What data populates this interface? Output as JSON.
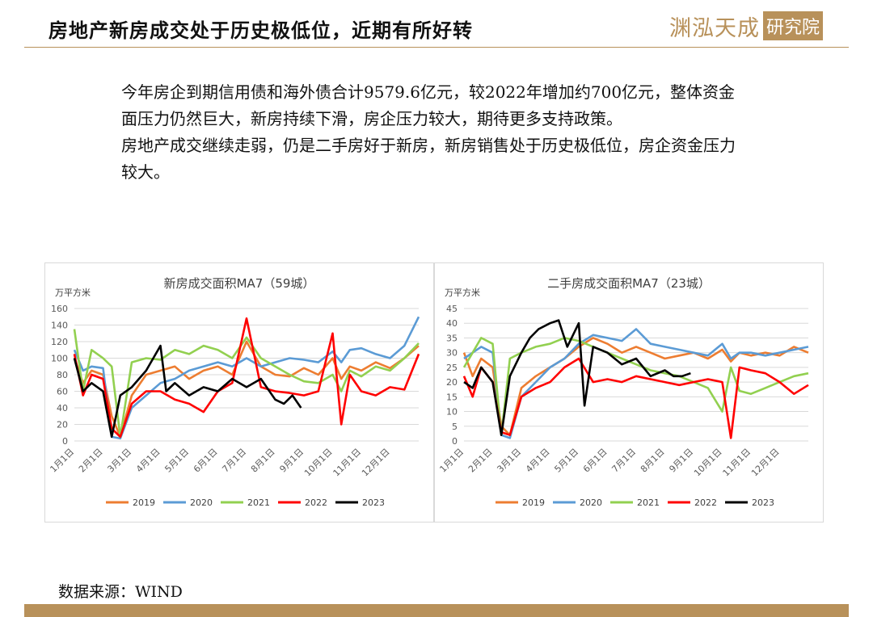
{
  "header": {
    "title": "房地产新房成交处于历史极低位，近期有所好转"
  },
  "logo": {
    "text": "渊泓天成",
    "boxed_text": "研究院",
    "color": "#b8915a"
  },
  "body": {
    "paragraphs": [
      "今年房企到期信用债和海外债合计9579.6亿元，较2022年增加约700亿元，整体资金面压力仍然巨大，新房持续下滑，房企压力较大，期待更多支持政策。",
      "房地产成交继续走弱，仍是二手房好于新房，新房销售处于历史极低位，房企资金压力较大。"
    ]
  },
  "source": {
    "text": "数据来源：WIND"
  },
  "series_colors": {
    "2019": "#ED7D31",
    "2020": "#5B9BD5",
    "2021": "#92D050",
    "2022": "#FF0000",
    "2023": "#000000"
  },
  "chart_data": [
    {
      "type": "line",
      "title": "新房成交面积MA7（59城）",
      "ylabel": "万平方米",
      "ylim": [
        0,
        160
      ],
      "yticks": [
        0,
        20,
        40,
        60,
        80,
        100,
        120,
        140,
        160
      ],
      "x_ticks": [
        "1月1日",
        "2月1日",
        "3月1日",
        "4月1日",
        "5月1日",
        "6月1日",
        "7月1日",
        "8月1日",
        "9月1日",
        "10月1日",
        "11月1日",
        "12月1日"
      ],
      "grid": true,
      "legend": "bottom",
      "series": [
        {
          "name": "2019",
          "x": [
            1,
            1.3,
            1.6,
            2,
            2.3,
            2.6,
            3,
            3.5,
            4,
            4.5,
            5,
            5.5,
            6,
            6.5,
            7,
            7.5,
            8,
            8.5,
            9,
            9.5,
            10,
            10.3,
            10.6,
            11,
            11.5,
            12,
            12.5,
            13
          ],
          "values": [
            100,
            70,
            85,
            80,
            30,
            5,
            55,
            80,
            85,
            90,
            75,
            85,
            90,
            80,
            120,
            90,
            80,
            78,
            88,
            80,
            100,
            75,
            90,
            85,
            95,
            88,
            100,
            115
          ]
        },
        {
          "name": "2020",
          "x": [
            1,
            1.3,
            1.6,
            2,
            2.3,
            2.6,
            3,
            3.5,
            4,
            4.5,
            5,
            5.5,
            6,
            6.5,
            7,
            7.5,
            8,
            8.5,
            9,
            9.5,
            10,
            10.3,
            10.6,
            11,
            11.5,
            12,
            12.5,
            13
          ],
          "values": [
            110,
            85,
            90,
            88,
            5,
            3,
            40,
            55,
            70,
            75,
            85,
            90,
            95,
            90,
            100,
            90,
            95,
            100,
            98,
            95,
            108,
            95,
            110,
            112,
            105,
            100,
            115,
            150
          ]
        },
        {
          "name": "2021",
          "x": [
            1,
            1.3,
            1.6,
            2,
            2.3,
            2.6,
            3,
            3.5,
            4,
            4.5,
            5,
            5.5,
            6,
            6.5,
            7,
            7.5,
            8,
            8.5,
            9,
            9.5,
            10,
            10.3,
            10.6,
            11,
            11.5,
            12,
            12.5,
            13
          ],
          "values": [
            135,
            60,
            110,
            100,
            90,
            5,
            95,
            100,
            98,
            110,
            105,
            115,
            110,
            100,
            125,
            100,
            90,
            80,
            72,
            70,
            80,
            60,
            85,
            78,
            90,
            85,
            100,
            118
          ]
        },
        {
          "name": "2022",
          "x": [
            1,
            1.3,
            1.6,
            2,
            2.3,
            2.6,
            3,
            3.5,
            4,
            4.5,
            5,
            5.5,
            6,
            6.5,
            7,
            7.5,
            8,
            8.5,
            9,
            9.5,
            10,
            10.3,
            10.6,
            11,
            11.5,
            12,
            12.5,
            13
          ],
          "values": [
            105,
            55,
            80,
            75,
            15,
            5,
            45,
            60,
            60,
            50,
            45,
            35,
            60,
            70,
            148,
            65,
            60,
            58,
            55,
            60,
            130,
            20,
            80,
            60,
            55,
            65,
            62,
            105
          ]
        },
        {
          "name": "2023",
          "x": [
            1,
            1.3,
            1.6,
            2,
            2.3,
            2.6,
            3,
            3.5,
            4,
            4.2,
            4.5,
            5,
            5.5,
            6,
            6.5,
            7,
            7.5,
            8,
            8.3,
            8.6,
            8.9
          ],
          "values": [
            100,
            60,
            70,
            60,
            5,
            55,
            65,
            85,
            115,
            60,
            70,
            55,
            65,
            60,
            75,
            65,
            75,
            50,
            45,
            55,
            40
          ]
        }
      ]
    },
    {
      "type": "line",
      "title": "二手房成交面积MA7（23城）",
      "ylabel": "万平方米",
      "ylim": [
        0,
        45
      ],
      "yticks": [
        0,
        5,
        10,
        15,
        20,
        25,
        30,
        35,
        40,
        45
      ],
      "x_ticks": [
        "1月1日",
        "2月1日",
        "3月1日",
        "4月1日",
        "5月1日",
        "6月1日",
        "7月1日",
        "8月1日",
        "9月1日",
        "10月1日",
        "11月1日",
        "12月1日"
      ],
      "grid": true,
      "legend": "bottom",
      "series": [
        {
          "name": "2019",
          "x": [
            1,
            1.3,
            1.6,
            2,
            2.3,
            2.6,
            3,
            3.5,
            4,
            4.5,
            5,
            5.5,
            6,
            6.5,
            7,
            7.5,
            8,
            8.5,
            9,
            9.5,
            10,
            10.3,
            10.6,
            11,
            11.5,
            12,
            12.5,
            13
          ],
          "values": [
            30,
            22,
            28,
            25,
            5,
            2,
            18,
            22,
            25,
            28,
            32,
            35,
            33,
            30,
            32,
            30,
            28,
            29,
            30,
            28,
            31,
            27,
            30,
            29,
            30,
            29,
            32,
            30
          ]
        },
        {
          "name": "2020",
          "x": [
            1,
            1.3,
            1.6,
            2,
            2.3,
            2.6,
            3,
            3.5,
            4,
            4.5,
            5,
            5.5,
            6,
            6.5,
            7,
            7.5,
            8,
            8.5,
            9,
            9.5,
            10,
            10.3,
            10.6,
            11,
            11.5,
            12,
            12.5,
            13
          ],
          "values": [
            28,
            30,
            32,
            30,
            2,
            1,
            15,
            20,
            25,
            28,
            33,
            36,
            35,
            34,
            38,
            33,
            32,
            31,
            30,
            29,
            33,
            28,
            30,
            30,
            29,
            30,
            31,
            32
          ]
        },
        {
          "name": "2021",
          "x": [
            1,
            1.3,
            1.6,
            2,
            2.3,
            2.6,
            3,
            3.5,
            4,
            4.5,
            5,
            5.5,
            6,
            6.5,
            7,
            7.5,
            8,
            8.5,
            9,
            9.5,
            10,
            10.3,
            10.6,
            11,
            11.5,
            12,
            12.5,
            13
          ],
          "values": [
            25,
            30,
            35,
            33,
            2,
            28,
            30,
            32,
            33,
            35,
            34,
            32,
            30,
            28,
            26,
            24,
            23,
            22,
            20,
            18,
            10,
            25,
            17,
            16,
            18,
            20,
            22,
            23
          ]
        },
        {
          "name": "2022",
          "x": [
            1,
            1.3,
            1.6,
            2,
            2.3,
            2.6,
            3,
            3.5,
            4,
            4.5,
            5,
            5.5,
            6,
            6.5,
            7,
            7.5,
            8,
            8.5,
            9,
            9.5,
            10,
            10.3,
            10.6,
            11,
            11.5,
            12,
            12.5,
            13
          ],
          "values": [
            22,
            15,
            25,
            20,
            3,
            2,
            15,
            18,
            20,
            25,
            28,
            20,
            21,
            20,
            22,
            21,
            20,
            19,
            20,
            21,
            20,
            1,
            25,
            24,
            23,
            20,
            16,
            19
          ]
        },
        {
          "name": "2023",
          "x": [
            1,
            1.3,
            1.6,
            2,
            2.3,
            2.6,
            3,
            3.3,
            3.6,
            4,
            4.3,
            4.6,
            5,
            5.2,
            5.5,
            6,
            6.5,
            7,
            7.5,
            8,
            8.3,
            8.6,
            8.9
          ],
          "values": [
            20,
            18,
            25,
            20,
            2,
            22,
            30,
            35,
            38,
            40,
            41,
            32,
            40,
            12,
            32,
            30,
            26,
            28,
            22,
            24,
            22,
            22,
            23
          ]
        }
      ]
    }
  ]
}
